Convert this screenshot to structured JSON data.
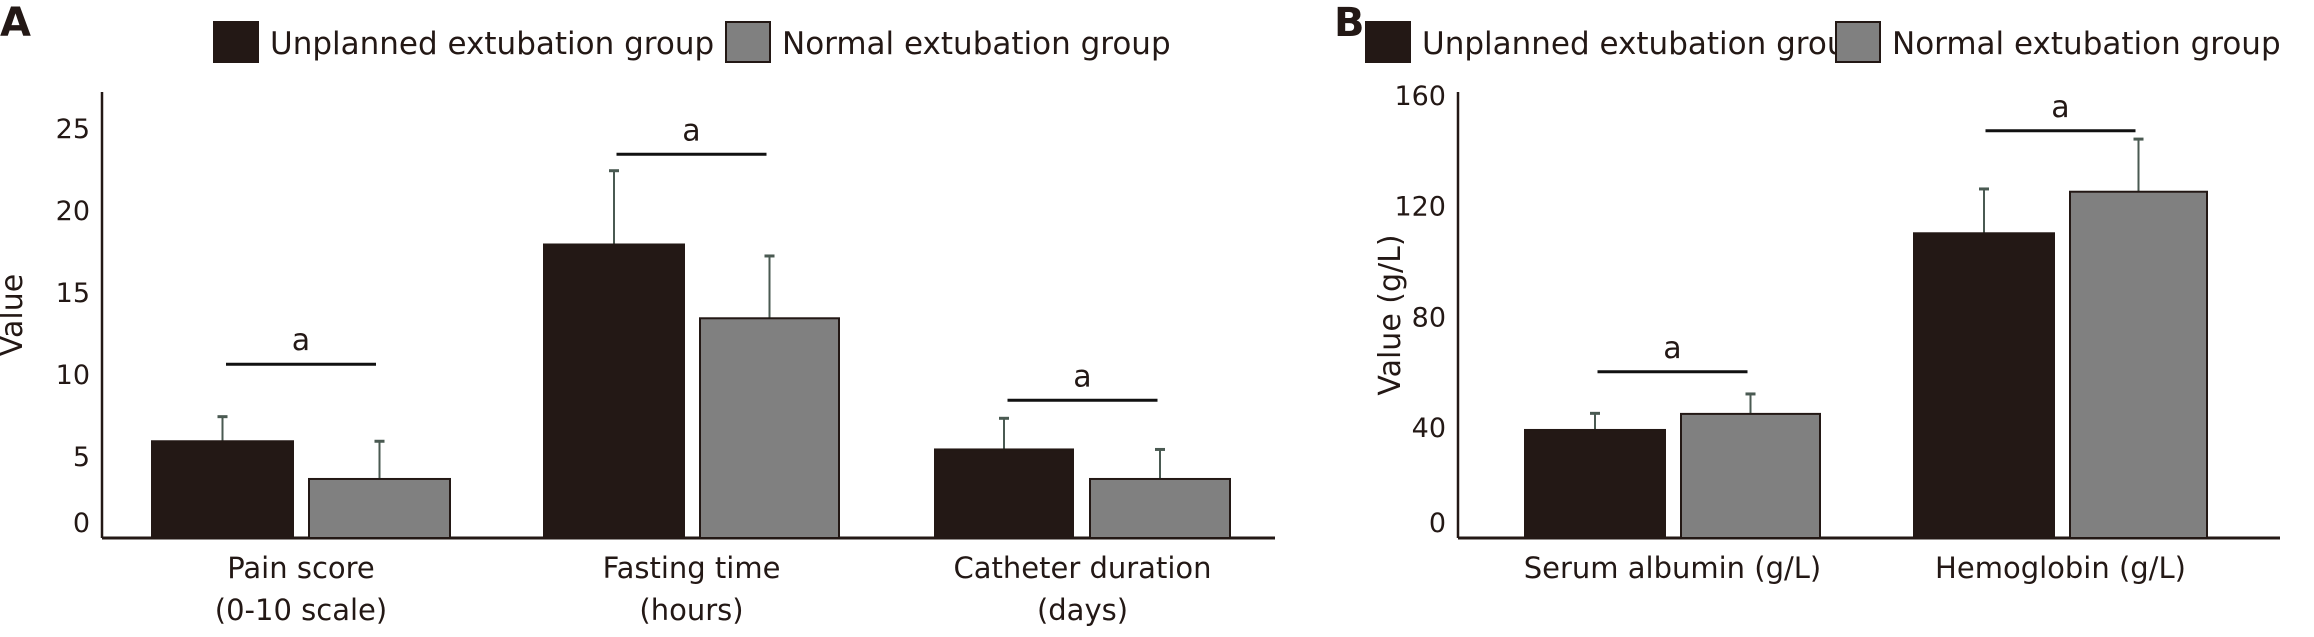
{
  "chart_data": [
    {
      "type": "bar",
      "panel_label": "A",
      "ylabel": "Value",
      "ylim": [
        0,
        27.2
      ],
      "yticks": [
        0,
        5,
        10,
        15,
        20,
        25
      ],
      "grid": false,
      "legend_placement": "top",
      "categories": [
        [
          "Pain score",
          "(0-10 scale)"
        ],
        [
          "Fasting time",
          "(hours)"
        ],
        [
          "Catheter duration",
          "(days)"
        ]
      ],
      "series": [
        {
          "name": "Unplanned extubation group",
          "color": "#231815",
          "values": [
            5.9,
            17.9,
            5.4
          ],
          "error_upper": [
            7.4,
            22.4,
            7.3
          ]
        },
        {
          "name": "Normal extubation group",
          "color": "#808080",
          "values": [
            3.6,
            13.4,
            3.6
          ],
          "error_upper": [
            5.9,
            17.2,
            5.4
          ]
        }
      ],
      "significance": [
        {
          "category": 0,
          "label": "a",
          "level": 10.6
        },
        {
          "category": 1,
          "label": "a",
          "level": 23.4
        },
        {
          "category": 2,
          "label": "a",
          "level": 8.4
        }
      ]
    },
    {
      "type": "bar",
      "panel_label": "B",
      "ylabel": "Value (g/L)",
      "ylim": [
        0,
        161
      ],
      "yticks": [
        0,
        40,
        80,
        120,
        160
      ],
      "grid": false,
      "legend_placement": "top",
      "categories": [
        [
          "Serum albumin (g/L)"
        ],
        [
          "Hemoglobin (g/L)"
        ]
      ],
      "series": [
        {
          "name": "Unplanned extubation group",
          "color": "#231815",
          "values": [
            39,
            110
          ],
          "error_upper": [
            45,
            126
          ]
        },
        {
          "name": "Normal extubation group",
          "color": "#808080",
          "values": [
            44.8,
            125
          ],
          "error_upper": [
            52,
            144
          ]
        }
      ],
      "significance": [
        {
          "category": 0,
          "label": "a",
          "level": 60
        },
        {
          "category": 1,
          "label": "a",
          "level": 147
        }
      ]
    }
  ]
}
